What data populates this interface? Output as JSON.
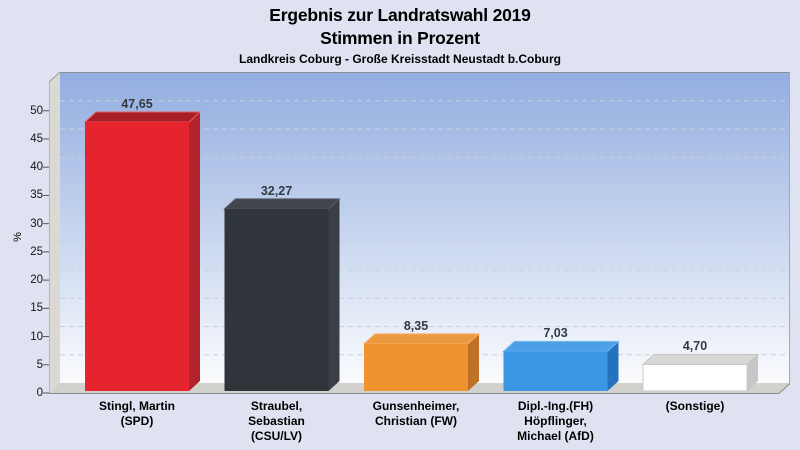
{
  "header": {
    "title_line1": "Ergebnis zur Landratswahl 2019",
    "title_line2": "Stimmen in Prozent",
    "subtitle": "Landkreis Coburg - Große Kreisstadt Neustadt b.Coburg"
  },
  "colors": {
    "page_bg": "#dfe3f1",
    "plot_top": "#92ade0",
    "plot_bottom": "#fafbfd",
    "wall": "#dbd9d4",
    "floor": "#d3d1cd",
    "grid": "#c9cfda",
    "axis_line": "#8b8b8b"
  },
  "chart_data": {
    "type": "bar",
    "style": "3d-column",
    "title": "Ergebnis zur Landratswahl 2019",
    "subtitle": "Stimmen in Prozent",
    "region": "Landkreis Coburg - Große Kreisstadt Neustadt b.Coburg",
    "ylabel": "%",
    "ylim": [
      0,
      55
    ],
    "ytick_step": 5,
    "yticks": [
      0,
      5,
      10,
      15,
      20,
      25,
      30,
      35,
      40,
      45,
      50
    ],
    "ytick_labels": [
      "0",
      "5",
      "10",
      "15",
      "20",
      "25",
      "30",
      "35",
      "40",
      "45",
      "50"
    ],
    "grid": "horizontal-dashed",
    "legend": "none",
    "categories": [
      "Stingl, Martin\n(SPD)",
      "Straubel,\nSebastian\n(CSU/LV)",
      "Gunsenheimer,\nChristian (FW)",
      "Dipl.-Ing.(FH)\nHöpflinger,\nMichael (AfD)",
      "(Sonstige)"
    ],
    "values": [
      47.65,
      32.27,
      8.35,
      7.03,
      4.7
    ],
    "value_labels": [
      "47,65",
      "32,27",
      "8,35",
      "7,03",
      "4,70"
    ],
    "bar_colors": [
      {
        "key": "spd",
        "party": "SPD",
        "front": "#e5242e",
        "top": "#a81f28",
        "side": "#b2232d",
        "edge": "#ee5a60"
      },
      {
        "key": "csu",
        "party": "CSU/LV",
        "front": "#30343b",
        "top": "#41454e",
        "side": "#3a3e46",
        "edge": "#565a63"
      },
      {
        "key": "fw",
        "party": "FW",
        "front": "#f0922e",
        "top": "#ec9a40",
        "side": "#c07125",
        "edge": "#f6b166"
      },
      {
        "key": "afd",
        "party": "AfD",
        "front": "#3b96e4",
        "top": "#4da0e6",
        "side": "#2472bf",
        "edge": "#77bbef"
      },
      {
        "key": "sonstige",
        "party": "(Sonstige)",
        "front": "#ffffff",
        "top": "#d7d7d7",
        "side": "#c6c6c6",
        "edge": "#c4c4c4"
      }
    ]
  }
}
